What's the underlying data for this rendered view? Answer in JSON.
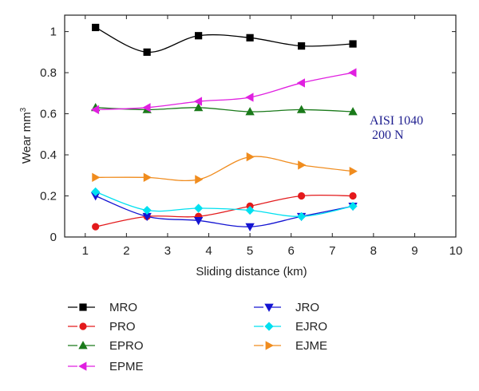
{
  "chart_data": {
    "type": "line",
    "xlabel": "Sliding distance (km)",
    "ylabel_main": "Wear mm",
    "ylabel_sup": "3",
    "xlim": [
      0.5,
      10
    ],
    "ylim": [
      0,
      1.08
    ],
    "xticks": [
      1,
      2,
      3,
      4,
      5,
      6,
      7,
      8,
      9,
      10
    ],
    "yticks": [
      0,
      0.2,
      0.4,
      0.6,
      0.8,
      1
    ],
    "ytick_labels": [
      "0",
      "0.2",
      "0.4",
      "0.6",
      "0.8",
      "1"
    ],
    "grid": false,
    "legend_placement": "below",
    "annotation_lines": [
      "AISI 1040",
      "200 N"
    ],
    "x": [
      1.25,
      2.5,
      3.75,
      5,
      6.25,
      7.5
    ],
    "series": [
      {
        "name": "MRO",
        "color": "#000000",
        "marker": "square",
        "values": [
          1.02,
          0.9,
          0.98,
          0.97,
          0.93,
          0.94
        ]
      },
      {
        "name": "PRO",
        "color": "#e31a1c",
        "marker": "circle",
        "values": [
          0.05,
          0.1,
          0.1,
          0.15,
          0.2,
          0.2
        ]
      },
      {
        "name": "EPRO",
        "color": "#1a7a1a",
        "marker": "triangle-up",
        "values": [
          0.63,
          0.62,
          0.63,
          0.61,
          0.62,
          0.61
        ]
      },
      {
        "name": "EPME",
        "color": "#e020e0",
        "marker": "triangle-left",
        "values": [
          0.62,
          0.63,
          0.66,
          0.68,
          0.75,
          0.8
        ]
      },
      {
        "name": "JRO",
        "color": "#1414d2",
        "marker": "triangle-down",
        "values": [
          0.2,
          0.1,
          0.08,
          0.05,
          0.1,
          0.15
        ]
      },
      {
        "name": "EJRO",
        "color": "#00e0f0",
        "marker": "diamond",
        "values": [
          0.22,
          0.13,
          0.14,
          0.13,
          0.1,
          0.15
        ]
      },
      {
        "name": "EJME",
        "color": "#f08c1e",
        "marker": "triangle-right",
        "values": [
          0.29,
          0.29,
          0.28,
          0.39,
          0.35,
          0.32
        ]
      }
    ]
  }
}
